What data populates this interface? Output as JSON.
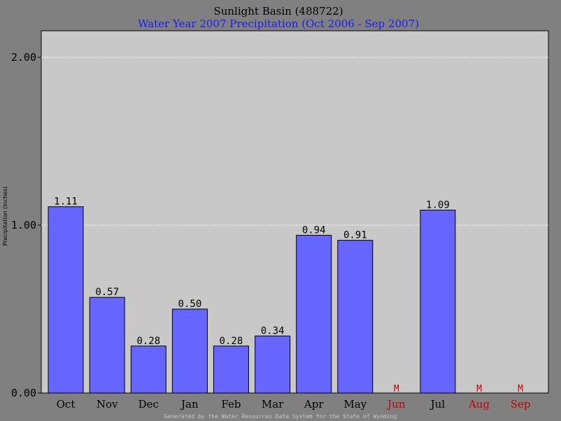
{
  "colors": {
    "background": "#808080",
    "plot_background": "#c8c8c8",
    "bar_fill": "#6666ff",
    "missing_color": "#cc0000",
    "subtitle_color": "#1a1aff",
    "grid_color": "#ffffff"
  },
  "chart_data": {
    "type": "bar",
    "title": "Sunlight Basin (488722)",
    "subtitle": "Water Year 2007 Precipitation (Oct 2006 - Sep 2007)",
    "xlabel": "",
    "ylabel": "Precipitation (Inches)",
    "ylim": [
      0,
      2.2
    ],
    "yticks": [
      0,
      1,
      2
    ],
    "ytick_labels": [
      "0.00",
      "1.00",
      "2.00"
    ],
    "grid": "horizontal-dotted",
    "categories": [
      "Oct",
      "Nov",
      "Dec",
      "Jan",
      "Feb",
      "Mar",
      "Apr",
      "May",
      "Jun",
      "Jul",
      "Aug",
      "Sep"
    ],
    "values": [
      1.11,
      0.57,
      0.28,
      0.5,
      0.28,
      0.34,
      0.94,
      0.91,
      null,
      1.09,
      null,
      null
    ],
    "data_labels": [
      "1.11",
      "0.57",
      "0.28",
      "0.50",
      "0.28",
      "0.34",
      "0.94",
      "0.91",
      "M",
      "1.09",
      "M",
      "M"
    ],
    "missing": [
      false,
      false,
      false,
      false,
      false,
      false,
      false,
      false,
      true,
      false,
      true,
      true
    ]
  },
  "footer": "Generated by the Water Resources Data System for the State of Wyoming"
}
